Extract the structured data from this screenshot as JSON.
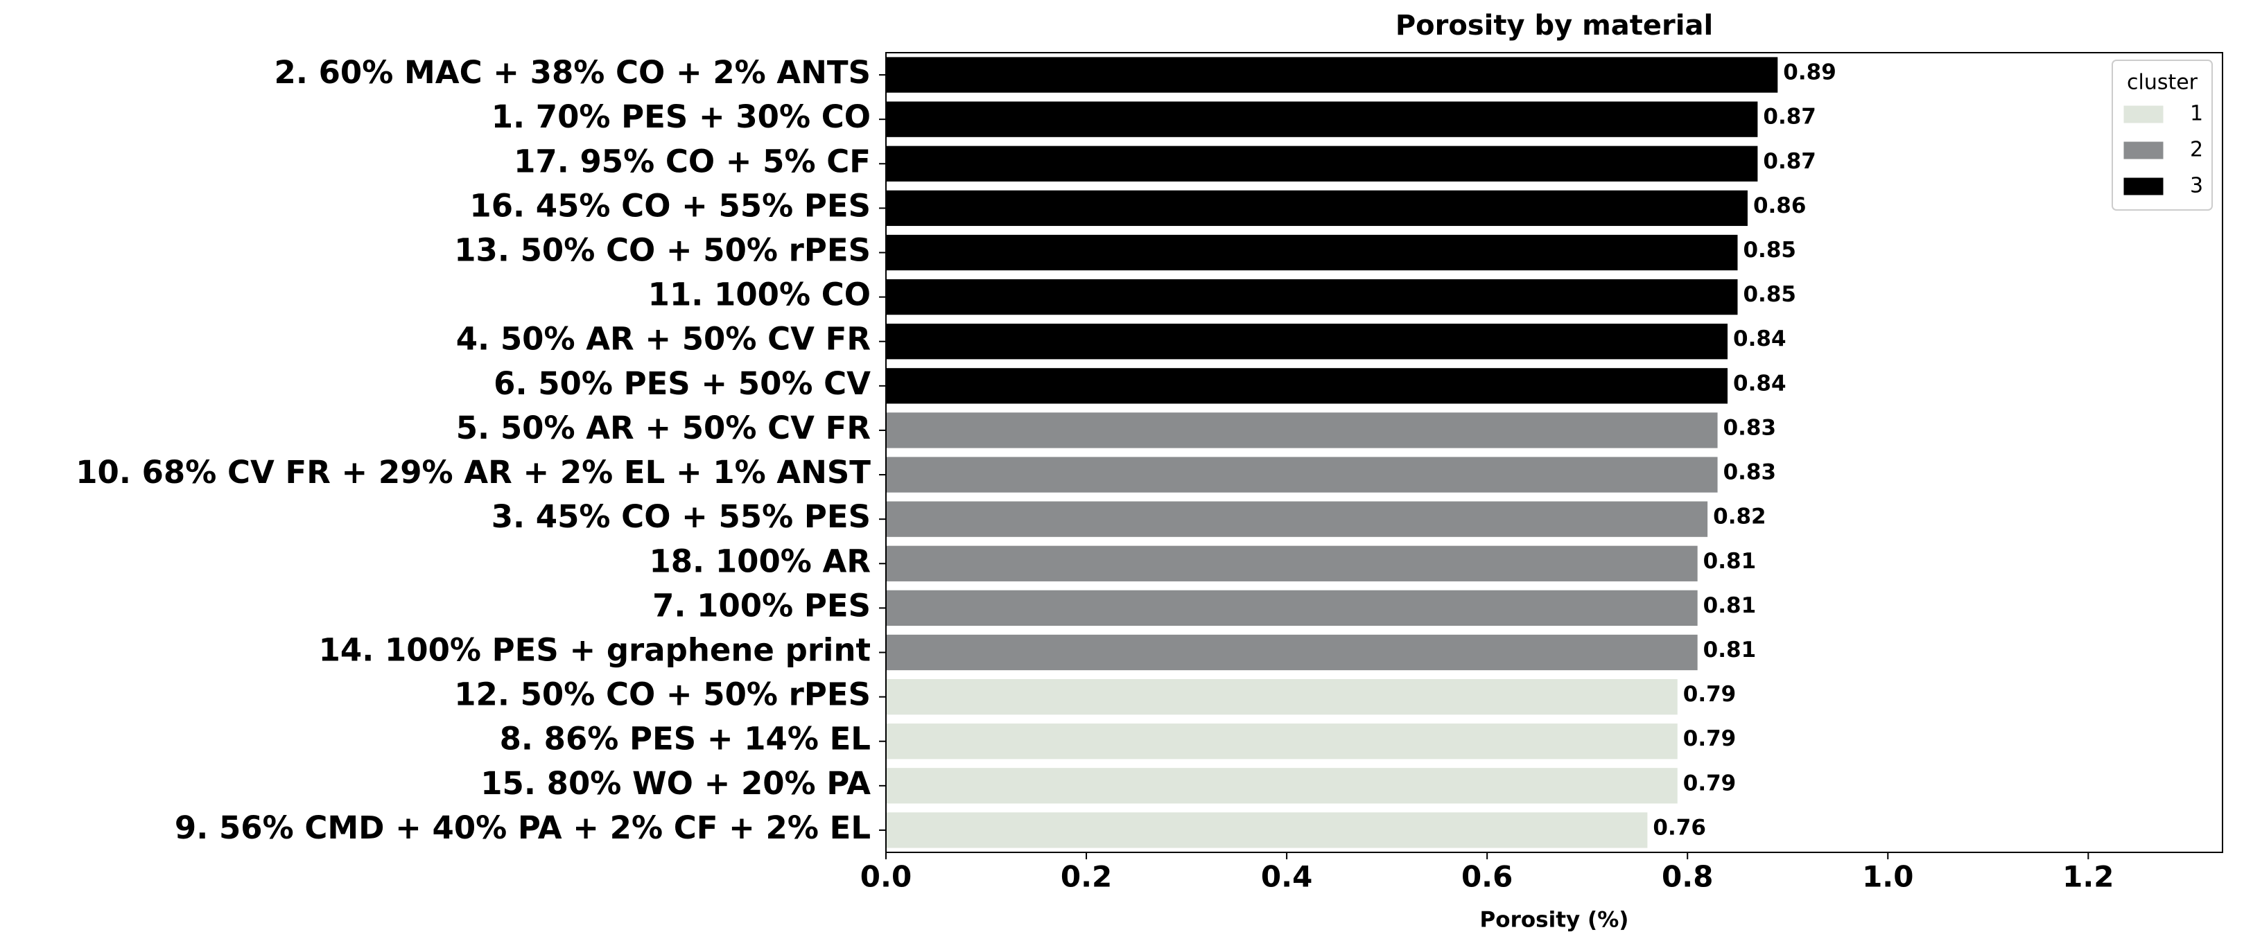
{
  "chart_data": {
    "type": "barh",
    "title": "Porosity by material",
    "xlabel": "Porosity  (%)",
    "categories": [
      "2. 60% MAC + 38% CO + 2% ANTS",
      "1. 70% PES + 30% CO",
      "17. 95% CO + 5% CF",
      "16. 45% CO + 55% PES",
      "13. 50% CO + 50% rPES",
      "11. 100% CO",
      "4. 50% AR + 50% CV FR",
      "6. 50% PES + 50% CV",
      "5. 50% AR + 50% CV FR",
      "10. 68% CV FR + 29% AR + 2% EL + 1% ANST",
      "3. 45% CO + 55% PES",
      "18. 100% AR",
      "7. 100% PES",
      "14. 100% PES + graphene print",
      "12. 50% CO + 50% rPES",
      "8. 86% PES + 14% EL",
      "15. 80% WO + 20% PA",
      "9. 56% CMD + 40% PA + 2% CF + 2% EL"
    ],
    "series": [
      {
        "name": "1",
        "color": "#dfe6dc",
        "values": [
          null,
          null,
          null,
          null,
          null,
          null,
          null,
          null,
          null,
          null,
          null,
          null,
          null,
          null,
          0.79,
          0.79,
          0.79,
          0.76
        ]
      },
      {
        "name": "2",
        "color": "#8a8c8e",
        "values": [
          null,
          null,
          null,
          null,
          null,
          null,
          null,
          null,
          0.83,
          0.83,
          0.82,
          0.81,
          0.81,
          0.81,
          null,
          null,
          null,
          null
        ]
      },
      {
        "name": "3",
        "color": "#000000",
        "values": [
          0.89,
          0.87,
          0.87,
          0.86,
          0.85,
          0.85,
          0.84,
          0.84,
          null,
          null,
          null,
          null,
          null,
          null,
          null,
          null,
          null,
          null
        ]
      }
    ],
    "legend_title": "cluster",
    "legend_position": "upper right",
    "xlim": [
      0,
      1.334
    ],
    "xticks": [
      {
        "value": 0,
        "label": "0.0"
      },
      0.2,
      0.4,
      0.6,
      0.8,
      {
        "value": 1,
        "label": "1.0"
      },
      1.2
    ],
    "grid": false
  }
}
